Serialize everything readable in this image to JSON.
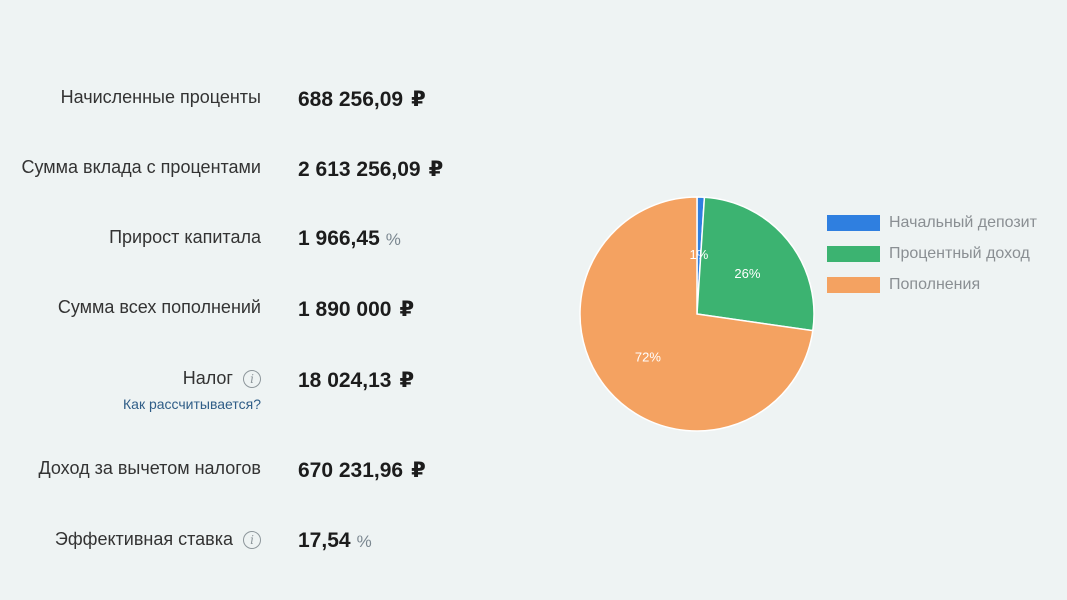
{
  "results": {
    "accrued_interest": {
      "label": "Начисленные проценты",
      "value": "688 256,09",
      "unit": "₽"
    },
    "total_with_interest": {
      "label": "Сумма вклада с процентами",
      "value": "2 613 256,09",
      "unit": "₽"
    },
    "capital_growth": {
      "label": "Прирост капитала",
      "value": "1 966,45",
      "unit": "%"
    },
    "total_deposits": {
      "label": "Сумма всех пополнений",
      "value": "1 890 000",
      "unit": "₽"
    },
    "tax": {
      "label": "Налог",
      "value": "18 024,13",
      "unit": "₽",
      "help_link": "Как рассчитывается?"
    },
    "net_income": {
      "label": "Доход за вычетом налогов",
      "value": "670 231,96",
      "unit": "₽"
    },
    "effective_rate": {
      "label": "Эффективная ставка",
      "value": "17,54",
      "unit": "%"
    }
  },
  "chart_data": {
    "type": "pie",
    "labels": [
      "Начальный депозит",
      "Процентный доход",
      "Пополнения"
    ],
    "values": [
      1,
      26,
      72
    ],
    "value_labels": [
      "1%",
      "26%",
      "72%"
    ],
    "colors": [
      "#2f7fe0",
      "#3cb371",
      "#f4a261"
    ],
    "legend_position": "right"
  },
  "icons": {
    "info": "info-icon"
  }
}
